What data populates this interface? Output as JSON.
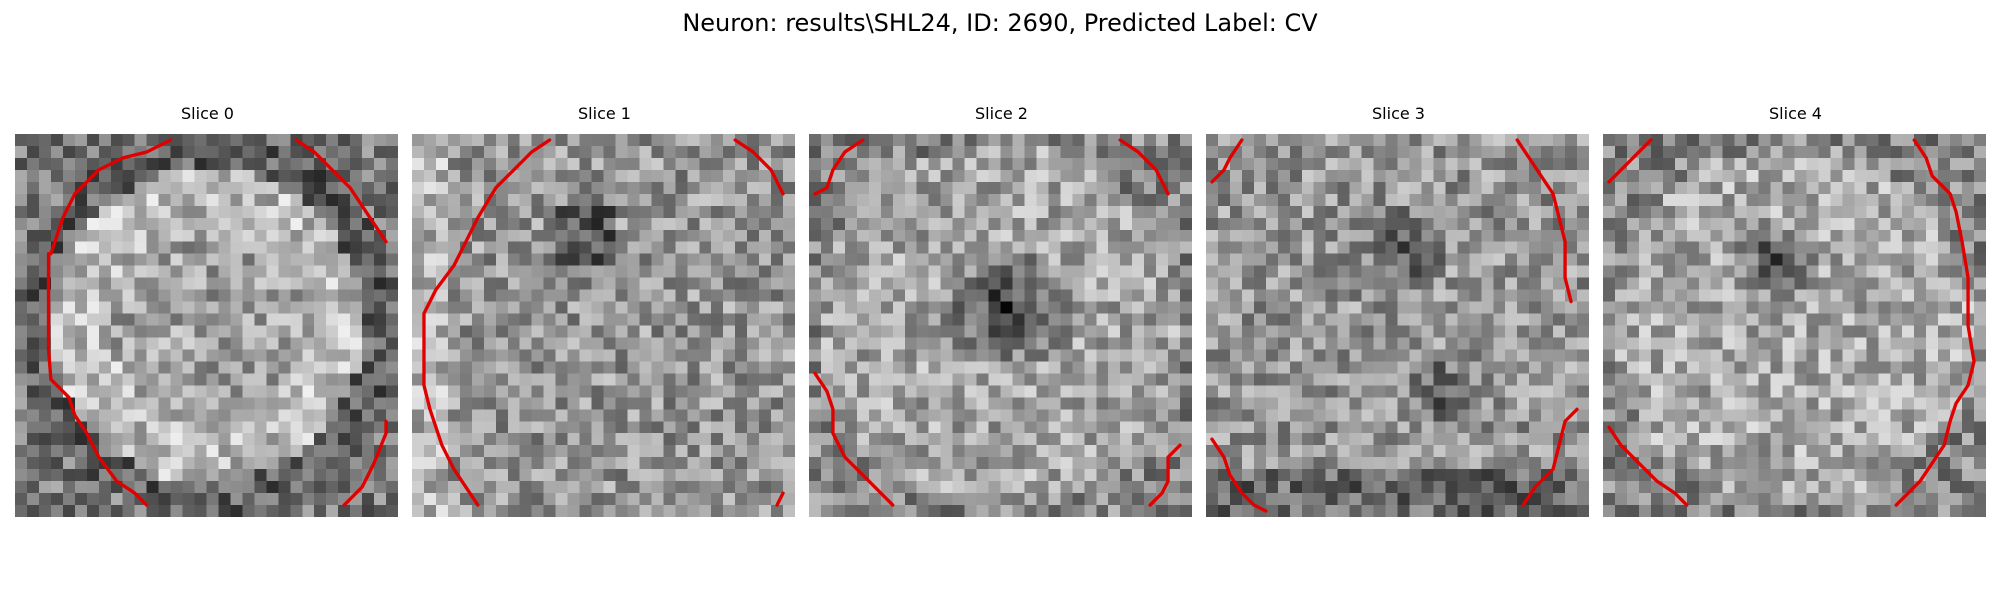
{
  "suptitle": "Neuron: results\\SHL24, ID: 2690, Predicted Label: CV",
  "panels": [
    {
      "title": "Slice 0",
      "seed": 11,
      "pattern": "ring"
    },
    {
      "title": "Slice 1",
      "seed": 23,
      "pattern": "noisy"
    },
    {
      "title": "Slice 2",
      "seed": 37,
      "pattern": "center-dark"
    },
    {
      "title": "Slice 3",
      "seed": 51,
      "pattern": "patchy"
    },
    {
      "title": "Slice 4",
      "seed": 67,
      "pattern": "center-dark-small"
    }
  ],
  "colors": {
    "contour": "#e00000",
    "background": "#ffffff"
  }
}
